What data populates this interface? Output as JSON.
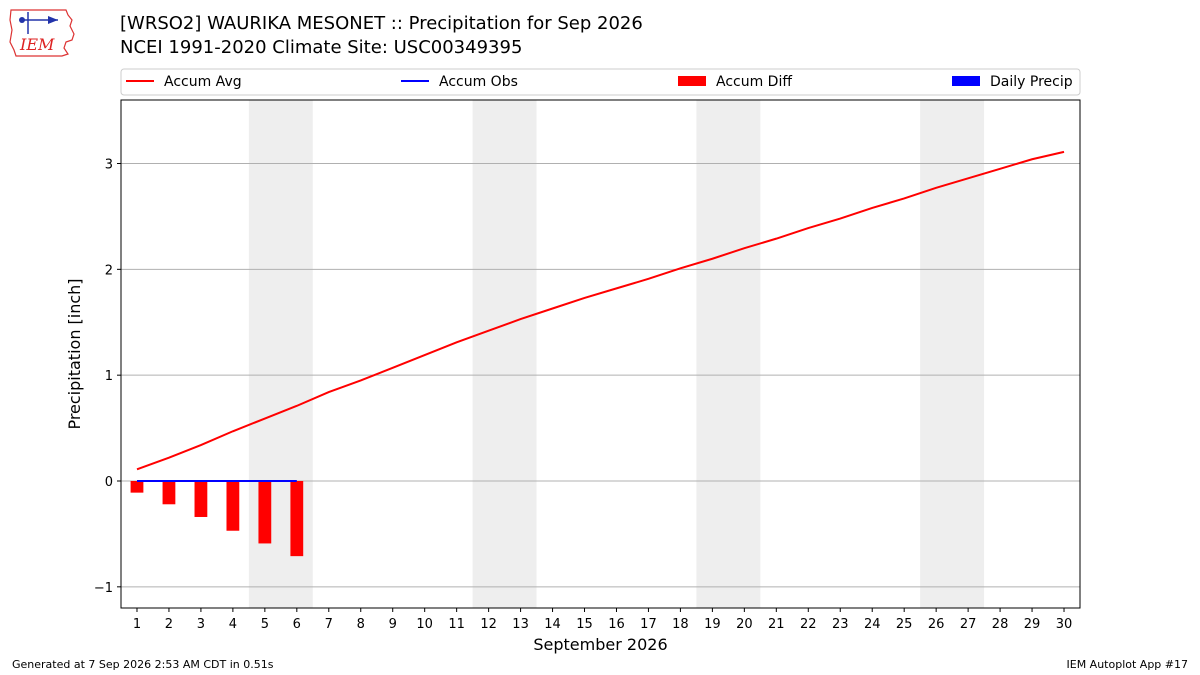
{
  "header": {
    "title_line1": "[WRSO2] WAURIKA MESONET :: Precipitation for Sep 2026",
    "title_line2": "NCEI 1991-2020 Climate Site: USC00349395",
    "logo_text": "IEM"
  },
  "footer": {
    "generated": "Generated at 7 Sep 2026 2:53 AM CDT in 0.51s",
    "app": "IEM Autoplot App #17"
  },
  "colors": {
    "accum_avg": "#ff0000",
    "accum_obs": "#0000ff",
    "accum_diff": "#ff0000",
    "daily_precip": "#0000ff",
    "weekend_shade": "#eeeeee",
    "grid": "#b0b0b0"
  },
  "chart_data": {
    "type": "line",
    "title": "[WRSO2] WAURIKA MESONET :: Precipitation for Sep 2026",
    "subtitle": "NCEI 1991-2020 Climate Site: USC00349395",
    "xlabel": "September 2026",
    "ylabel": "Precipitation [inch]",
    "xlim": [
      0.5,
      30.5
    ],
    "ylim": [
      -1.2,
      3.6
    ],
    "grid": "horizontal",
    "legend_placement": "top",
    "x_ticks": [
      1,
      2,
      3,
      4,
      5,
      6,
      7,
      8,
      9,
      10,
      11,
      12,
      13,
      14,
      15,
      16,
      17,
      18,
      19,
      20,
      21,
      22,
      23,
      24,
      25,
      26,
      27,
      28,
      29,
      30
    ],
    "y_ticks": [
      {
        "value": -1,
        "label": "−1"
      },
      {
        "value": 0,
        "label": "0"
      },
      {
        "value": 1,
        "label": "1"
      },
      {
        "value": 2,
        "label": "2"
      },
      {
        "value": 3,
        "label": "3"
      }
    ],
    "weekend_spans": [
      [
        4.5,
        6.5
      ],
      [
        11.5,
        13.5
      ],
      [
        18.5,
        20.5
      ],
      [
        25.5,
        27.5
      ]
    ],
    "legend": [
      "Accum Avg",
      "Accum Obs",
      "Accum Diff",
      "Daily Precip"
    ],
    "series": [
      {
        "name": "Accum Avg",
        "kind": "line",
        "x": [
          1,
          2,
          3,
          4,
          5,
          6,
          7,
          8,
          9,
          10,
          11,
          12,
          13,
          14,
          15,
          16,
          17,
          18,
          19,
          20,
          21,
          22,
          23,
          24,
          25,
          26,
          27,
          28,
          29,
          30
        ],
        "values": [
          0.11,
          0.22,
          0.34,
          0.47,
          0.59,
          0.71,
          0.84,
          0.95,
          1.07,
          1.19,
          1.31,
          1.42,
          1.53,
          1.63,
          1.73,
          1.82,
          1.91,
          2.01,
          2.1,
          2.2,
          2.29,
          2.39,
          2.48,
          2.58,
          2.67,
          2.77,
          2.86,
          2.95,
          3.04,
          3.11
        ]
      },
      {
        "name": "Accum Obs",
        "kind": "line",
        "x": [
          1,
          2,
          3,
          4,
          5,
          6
        ],
        "values": [
          0,
          0,
          0,
          0,
          0,
          0
        ]
      },
      {
        "name": "Accum Diff",
        "kind": "bar",
        "x": [
          1,
          2,
          3,
          4,
          5,
          6
        ],
        "values": [
          -0.11,
          -0.22,
          -0.34,
          -0.47,
          -0.59,
          -0.71
        ]
      },
      {
        "name": "Daily Precip",
        "kind": "bar",
        "x": [
          1,
          2,
          3,
          4,
          5,
          6
        ],
        "values": [
          0,
          0,
          0,
          0,
          0,
          0
        ]
      }
    ]
  }
}
